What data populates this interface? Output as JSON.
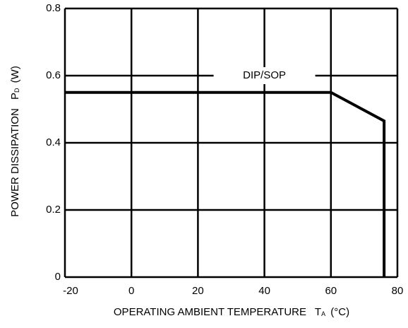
{
  "chart_data": {
    "type": "line",
    "x_label": "OPERATING AMBIENT TEMPERATURE",
    "x_label_symbol": "T",
    "x_label_sub": "A",
    "x_label_unit": "(°C)",
    "y_label": "POWER DISSIPATION",
    "y_label_symbol": "P",
    "y_label_sub": "D",
    "y_label_unit": "(W)",
    "annotation": "DIP/SOP",
    "series": [
      {
        "name": "DIP/SOP",
        "color": "#000000",
        "x": [
          -20,
          60,
          76,
          76
        ],
        "values": [
          0.55,
          0.55,
          0.465,
          0
        ]
      }
    ],
    "xlim": [
      -20,
      80
    ],
    "xticks": [
      -20,
      0,
      20,
      40,
      60,
      80
    ],
    "ylim": [
      0,
      0.8
    ],
    "yticks": [
      0,
      0.2,
      0.4,
      0.6,
      0.8
    ],
    "grid": true
  }
}
